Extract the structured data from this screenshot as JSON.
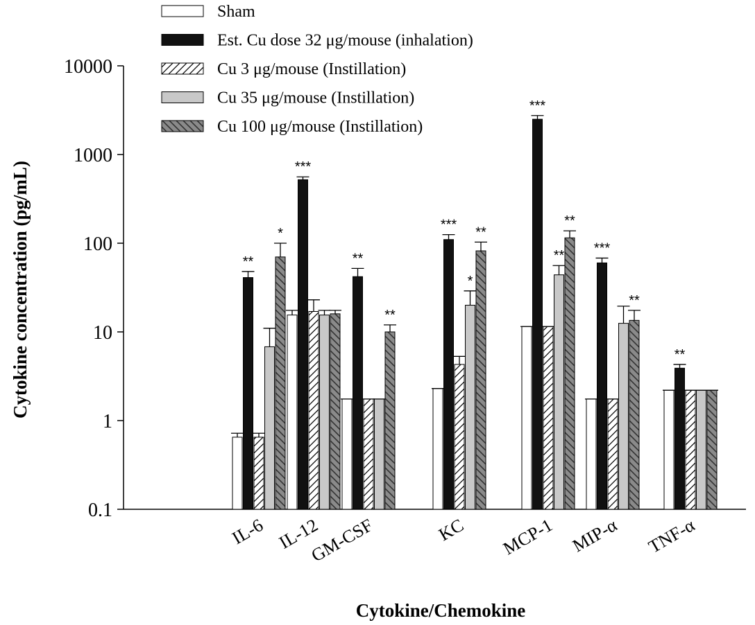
{
  "chart_data": {
    "type": "bar",
    "y_scale": "log",
    "ylim": [
      0.1,
      10000
    ],
    "yticks": [
      {
        "value": 0.1,
        "label": "0.1"
      },
      {
        "value": 1,
        "label": "1"
      },
      {
        "value": 10,
        "label": "10"
      },
      {
        "value": 100,
        "label": "100"
      },
      {
        "value": 1000,
        "label": "1000"
      },
      {
        "value": 10000,
        "label": "10000"
      }
    ],
    "xlabel": "Cytokine/Chemokine",
    "ylabel": "Cytokine concentration (pg/mL)",
    "legend_position": "top-left",
    "grid": false,
    "categories": [
      "IL-6",
      "IL-12",
      "GM-CSF",
      "KC",
      "MCP-1",
      "MIP-α",
      "TNF-α"
    ],
    "series": [
      {
        "name": "Sham",
        "fill": "#ffffff",
        "pattern": "none",
        "values": [
          0.65,
          15.5,
          1.75,
          2.3,
          11.5,
          1.75,
          2.2
        ],
        "errors": [
          0.72,
          17.5,
          1.75,
          2.3,
          11.5,
          1.75,
          2.2
        ],
        "sig": [
          "",
          "",
          "",
          "",
          "",
          "",
          ""
        ]
      },
      {
        "name": "Est. Cu dose 32 μg/mouse (inhalation)",
        "fill": "#111111",
        "pattern": "none",
        "values": [
          41,
          520,
          42,
          110,
          2500,
          60,
          3.9
        ],
        "errors": [
          48,
          560,
          52,
          125,
          2750,
          68,
          4.3
        ],
        "sig": [
          "**",
          "***",
          "**",
          "***",
          "***",
          "***",
          "**"
        ]
      },
      {
        "name": "Cu 3 μg/mouse (Instillation)",
        "fill": "#ffffff",
        "pattern": "forward-hatch",
        "values": [
          0.65,
          17,
          1.75,
          4.3,
          11.5,
          1.75,
          2.2
        ],
        "errors": [
          0.72,
          23,
          1.75,
          5.3,
          11.5,
          1.75,
          2.2
        ],
        "sig": [
          "",
          "",
          "",
          "",
          "",
          "",
          ""
        ]
      },
      {
        "name": "Cu 35 μg/mouse (Instillation)",
        "fill": "#c8c8c8",
        "pattern": "none",
        "values": [
          6.8,
          15.5,
          1.75,
          20,
          44,
          12.5,
          2.2
        ],
        "errors": [
          11,
          17.5,
          1.75,
          29,
          56,
          19.5,
          2.2
        ],
        "sig": [
          "",
          "",
          "",
          "*",
          "**",
          "",
          ""
        ]
      },
      {
        "name": "Cu 100 μg/mouse (Instillation)",
        "fill": "#8a8a8a",
        "pattern": "back-hatch",
        "values": [
          70,
          16,
          10,
          82,
          115,
          13.5,
          2.2
        ],
        "errors": [
          100,
          17.5,
          12,
          103,
          138,
          17.5,
          2.2
        ],
        "sig": [
          "*",
          "",
          "**",
          "**",
          "**",
          "**",
          ""
        ]
      }
    ]
  }
}
